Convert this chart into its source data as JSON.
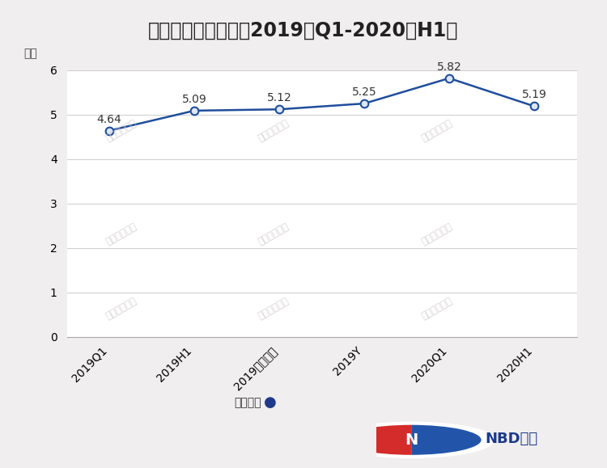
{
  "title": "舍得酒业股东户数（2019年Q1-2020年H1）",
  "ylabel": "万户",
  "categories": [
    "2019Q1",
    "2019H1",
    "2019前三季度",
    "2019Y",
    "2020Q1",
    "2020H1"
  ],
  "values": [
    4.64,
    5.09,
    5.12,
    5.25,
    5.82,
    5.19
  ],
  "ylim": [
    0,
    6
  ],
  "yticks": [
    0,
    1,
    2,
    3,
    4,
    5,
    6
  ],
  "line_color": "#1f4e9c",
  "marker_color": "#1f4e9c",
  "marker_face_color": "#dce6f5",
  "legend_label": "股东户数",
  "legend_marker_color": "#1f3a8a",
  "bg_color": "#f0eeee",
  "plot_bg_color": "#ffffff",
  "title_fontsize": 17,
  "label_fontsize": 10,
  "tick_fontsize": 10,
  "grid_color": "#d0d0d0",
  "watermark_color": "#d0c8c8",
  "nbd_text": "NBD数据"
}
